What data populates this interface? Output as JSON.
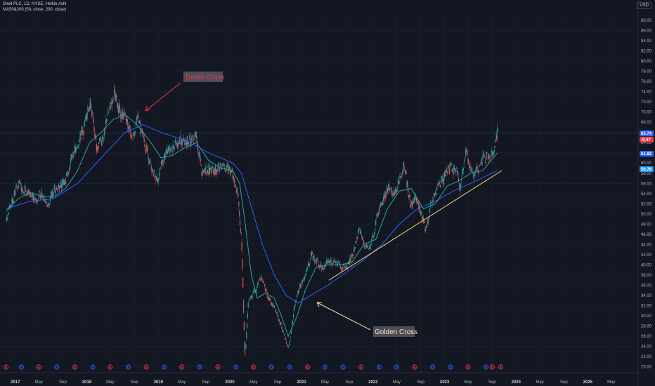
{
  "header": {
    "line1": "Shell PLC, 1D, NYSE, Heikin Ashi",
    "line2": "MA50&200 (50, close, 200, close)"
  },
  "currency_label": "USD",
  "colors": {
    "background": "#131722",
    "candle_up": "#26a69a",
    "candle_down": "#ef5350",
    "candle_blend": "#a35ca8",
    "ma50": "#26a6a6",
    "ma200": "#2962ff",
    "death_cross_text": "#f23645",
    "golden_cross_text": "#ffe0b2",
    "trend_line": "#ffcc80",
    "death_arrow": "#f23645",
    "golden_arrow": "#ffe0b2",
    "price_line": "#2962ff"
  },
  "chart_data": {
    "type": "line",
    "xlabel": "",
    "ylabel": "",
    "x_axis_ticks": [
      {
        "label": "2017",
        "date": "2017-01-01",
        "year": true
      },
      {
        "label": "May",
        "date": "2017-05-01",
        "year": false
      },
      {
        "label": "Sep",
        "date": "2017-09-01",
        "year": false
      },
      {
        "label": "2018",
        "date": "2018-01-01",
        "year": true
      },
      {
        "label": "May",
        "date": "2018-05-01",
        "year": false
      },
      {
        "label": "Sep",
        "date": "2018-09-01",
        "year": false
      },
      {
        "label": "2019",
        "date": "2019-01-01",
        "year": true
      },
      {
        "label": "May",
        "date": "2019-05-01",
        "year": false
      },
      {
        "label": "Sep",
        "date": "2019-09-01",
        "year": false
      },
      {
        "label": "2020",
        "date": "2020-01-01",
        "year": true
      },
      {
        "label": "May",
        "date": "2020-05-01",
        "year": false
      },
      {
        "label": "Sep",
        "date": "2020-09-01",
        "year": false
      },
      {
        "label": "2021",
        "date": "2021-01-01",
        "year": true
      },
      {
        "label": "May",
        "date": "2021-05-01",
        "year": false
      },
      {
        "label": "Sep",
        "date": "2021-09-01",
        "year": false
      },
      {
        "label": "2022",
        "date": "2022-01-01",
        "year": true
      },
      {
        "label": "May",
        "date": "2022-05-01",
        "year": false
      },
      {
        "label": "Sep",
        "date": "2022-09-01",
        "year": false
      },
      {
        "label": "2023",
        "date": "2023-01-01",
        "year": true
      },
      {
        "label": "May",
        "date": "2023-05-01",
        "year": false
      },
      {
        "label": "Sep",
        "date": "2023-09-01",
        "year": false
      },
      {
        "label": "2024",
        "date": "2024-01-01",
        "year": true
      },
      {
        "label": "May",
        "date": "2024-05-01",
        "year": false
      },
      {
        "label": "Sep",
        "date": "2024-09-01",
        "year": false
      },
      {
        "label": "2025",
        "date": "2025-01-01",
        "year": true
      },
      {
        "label": "May",
        "date": "2025-05-01",
        "year": false
      }
    ],
    "y_axis_ticks": [
      20,
      22,
      24,
      26,
      28,
      30,
      32,
      34,
      36,
      38,
      40,
      42,
      44,
      46,
      48,
      50,
      52,
      54,
      56,
      58,
      60,
      62,
      64,
      66,
      68,
      70,
      72,
      74,
      76,
      78,
      80,
      82,
      84,
      86,
      88
    ],
    "y_tick_labels": [
      "20.00",
      "22.00",
      "24.00",
      "26.00",
      "28.00",
      "30.00",
      "32.00",
      "34.00",
      "36.00",
      "38.00",
      "40.00",
      "42.00",
      "44.00",
      "46.00",
      "48.00",
      "50.00",
      "52.00",
      "54.00",
      "56.00",
      "58.00",
      "60.00",
      "62.00",
      "64.00",
      "66.00",
      "68.00",
      "70.00",
      "72.00",
      "74.00",
      "76.00",
      "78.00",
      "80.00",
      "82.00",
      "84.00",
      "86.00",
      "88.00"
    ],
    "ylim": [
      19,
      89.5
    ],
    "xlim": [
      "2016-10-15",
      "2025-09-15"
    ],
    "price_series": {
      "name": "Shell PLC",
      "points": [
        [
          "2016-11-15",
          48.8
        ],
        [
          "2016-12-15",
          52.4
        ],
        [
          "2017-01-15",
          55.8
        ],
        [
          "2017-02-15",
          55.0
        ],
        [
          "2017-03-15",
          53.5
        ],
        [
          "2017-04-15",
          53.2
        ],
        [
          "2017-05-15",
          53.8
        ],
        [
          "2017-06-15",
          51.5
        ],
        [
          "2017-07-15",
          54.8
        ],
        [
          "2017-08-15",
          55.5
        ],
        [
          "2017-09-15",
          56.8
        ],
        [
          "2017-10-15",
          61.0
        ],
        [
          "2017-11-15",
          64.0
        ],
        [
          "2017-12-15",
          66.8
        ],
        [
          "2018-01-20",
          72.0
        ],
        [
          "2018-02-20",
          63.0
        ],
        [
          "2018-03-20",
          64.5
        ],
        [
          "2018-04-20",
          70.0
        ],
        [
          "2018-05-20",
          73.5
        ],
        [
          "2018-06-20",
          70.0
        ],
        [
          "2018-07-20",
          69.5
        ],
        [
          "2018-08-20",
          65.0
        ],
        [
          "2018-09-20",
          68.5
        ],
        [
          "2018-10-20",
          64.0
        ],
        [
          "2018-11-20",
          60.0
        ],
        [
          "2018-12-24",
          56.5
        ],
        [
          "2019-01-20",
          60.5
        ],
        [
          "2019-02-20",
          62.5
        ],
        [
          "2019-03-20",
          63.0
        ],
        [
          "2019-04-20",
          64.5
        ],
        [
          "2019-05-20",
          64.5
        ],
        [
          "2019-06-20",
          64.0
        ],
        [
          "2019-07-10",
          66.0
        ],
        [
          "2019-08-15",
          57.5
        ],
        [
          "2019-09-15",
          59.0
        ],
        [
          "2019-10-15",
          58.5
        ],
        [
          "2019-11-15",
          59.5
        ],
        [
          "2019-12-15",
          59.0
        ],
        [
          "2020-01-15",
          58.0
        ],
        [
          "2020-02-10",
          54.0
        ],
        [
          "2020-03-01",
          45.0
        ],
        [
          "2020-03-18",
          21.5
        ],
        [
          "2020-04-05",
          33.0
        ],
        [
          "2020-05-01",
          34.5
        ],
        [
          "2020-06-10",
          37.5
        ],
        [
          "2020-07-15",
          33.5
        ],
        [
          "2020-08-15",
          31.5
        ],
        [
          "2020-09-15",
          28.5
        ],
        [
          "2020-10-28",
          23.5
        ],
        [
          "2020-11-25",
          31.5
        ],
        [
          "2020-12-20",
          35.5
        ],
        [
          "2021-01-20",
          38.0
        ],
        [
          "2021-02-20",
          42.0
        ],
        [
          "2021-03-15",
          41.0
        ],
        [
          "2021-04-15",
          39.5
        ],
        [
          "2021-05-15",
          40.5
        ],
        [
          "2021-06-20",
          41.0
        ],
        [
          "2021-07-20",
          39.5
        ],
        [
          "2021-08-20",
          39.5
        ],
        [
          "2021-09-20",
          42.0
        ],
        [
          "2021-10-20",
          47.0
        ],
        [
          "2021-11-20",
          44.0
        ],
        [
          "2021-12-20",
          43.5
        ],
        [
          "2022-01-25",
          50.0
        ],
        [
          "2022-02-25",
          53.0
        ],
        [
          "2022-03-25",
          55.5
        ],
        [
          "2022-04-25",
          54.0
        ],
        [
          "2022-06-08",
          60.0
        ],
        [
          "2022-07-10",
          52.0
        ],
        [
          "2022-08-15",
          53.0
        ],
        [
          "2022-09-28",
          46.5
        ],
        [
          "2022-10-28",
          52.5
        ],
        [
          "2022-11-28",
          55.5
        ],
        [
          "2022-12-28",
          57.0
        ],
        [
          "2023-01-28",
          59.0
        ],
        [
          "2023-02-28",
          58.5
        ],
        [
          "2023-03-20",
          55.0
        ],
        [
          "2023-04-20",
          62.0
        ],
        [
          "2023-05-20",
          58.0
        ],
        [
          "2023-06-20",
          58.5
        ],
        [
          "2023-07-20",
          61.0
        ],
        [
          "2023-08-20",
          61.5
        ],
        [
          "2023-09-10",
          62.5
        ],
        [
          "2023-09-28",
          66.0
        ]
      ]
    },
    "ma50": {
      "name": "MA50",
      "points": [
        [
          "2016-11-15",
          50.5
        ],
        [
          "2017-01-15",
          53.0
        ],
        [
          "2017-03-15",
          54.2
        ],
        [
          "2017-05-15",
          53.5
        ],
        [
          "2017-07-15",
          53.3
        ],
        [
          "2017-09-15",
          55.0
        ],
        [
          "2017-11-15",
          58.5
        ],
        [
          "2018-01-15",
          64.0
        ],
        [
          "2018-03-15",
          66.0
        ],
        [
          "2018-05-15",
          68.5
        ],
        [
          "2018-07-15",
          69.5
        ],
        [
          "2018-09-15",
          67.5
        ],
        [
          "2018-11-15",
          64.5
        ],
        [
          "2019-01-15",
          61.0
        ],
        [
          "2019-03-15",
          61.5
        ],
        [
          "2019-05-15",
          63.0
        ],
        [
          "2019-07-15",
          64.0
        ],
        [
          "2019-09-15",
          60.5
        ],
        [
          "2019-11-15",
          59.0
        ],
        [
          "2020-01-15",
          58.5
        ],
        [
          "2020-02-20",
          56.0
        ],
        [
          "2020-03-20",
          48.0
        ],
        [
          "2020-04-20",
          38.0
        ],
        [
          "2020-05-20",
          33.5
        ],
        [
          "2020-07-01",
          34.5
        ],
        [
          "2020-08-15",
          33.5
        ],
        [
          "2020-09-20",
          30.0
        ],
        [
          "2020-10-25",
          26.0
        ],
        [
          "2020-12-10",
          30.0
        ],
        [
          "2021-01-20",
          35.0
        ],
        [
          "2021-03-15",
          39.5
        ],
        [
          "2021-05-15",
          40.0
        ],
        [
          "2021-07-15",
          40.0
        ],
        [
          "2021-09-15",
          40.5
        ],
        [
          "2021-11-15",
          44.0
        ],
        [
          "2022-01-15",
          45.0
        ],
        [
          "2022-03-15",
          51.0
        ],
        [
          "2022-05-15",
          54.5
        ],
        [
          "2022-07-15",
          55.0
        ],
        [
          "2022-09-15",
          51.0
        ],
        [
          "2022-11-15",
          52.0
        ],
        [
          "2023-01-15",
          55.5
        ],
        [
          "2023-03-15",
          56.5
        ],
        [
          "2023-05-15",
          58.0
        ],
        [
          "2023-07-15",
          58.5
        ],
        [
          "2023-09-28",
          62.0
        ]
      ]
    },
    "ma200": {
      "name": "MA200",
      "points": [
        [
          "2016-11-15",
          51.0
        ],
        [
          "2017-03-15",
          52.5
        ],
        [
          "2017-07-15",
          53.0
        ],
        [
          "2017-11-15",
          56.0
        ],
        [
          "2018-03-15",
          61.0
        ],
        [
          "2018-07-15",
          66.0
        ],
        [
          "2018-10-15",
          67.5
        ],
        [
          "2019-01-15",
          66.0
        ],
        [
          "2019-05-15",
          64.5
        ],
        [
          "2019-09-15",
          62.0
        ],
        [
          "2020-01-15",
          60.0
        ],
        [
          "2020-03-01",
          58.0
        ],
        [
          "2020-04-15",
          52.0
        ],
        [
          "2020-06-15",
          44.0
        ],
        [
          "2020-08-15",
          38.0
        ],
        [
          "2020-10-15",
          34.0
        ],
        [
          "2020-12-15",
          32.5
        ],
        [
          "2021-02-15",
          34.0
        ],
        [
          "2021-05-15",
          36.0
        ],
        [
          "2021-08-15",
          38.5
        ],
        [
          "2021-11-15",
          41.0
        ],
        [
          "2022-02-15",
          44.0
        ],
        [
          "2022-05-15",
          48.0
        ],
        [
          "2022-08-15",
          51.0
        ],
        [
          "2022-11-15",
          52.5
        ],
        [
          "2023-02-15",
          54.5
        ],
        [
          "2023-05-15",
          56.0
        ],
        [
          "2023-09-28",
          58.5
        ]
      ]
    },
    "last_price_line": 65.8,
    "price_badges": [
      {
        "label": "65.74",
        "value": 65.8,
        "color": "#2962ff"
      },
      {
        "label": "-0.47",
        "value": 64.6,
        "color": "#f23645"
      },
      {
        "label": "61.82",
        "value": 61.8,
        "color": "#2962ff"
      },
      {
        "label": "58.78",
        "value": 58.8,
        "color": "#2196f3"
      }
    ],
    "annotations": [
      {
        "label": "Death Cross",
        "type": "death"
      },
      {
        "label": "Golden Cross",
        "type": "golden"
      }
    ],
    "trend_line": {
      "from": [
        "2021-05-20",
        37.0
      ],
      "to": [
        "2023-10-20",
        58.5
      ]
    },
    "event_markers": [
      {
        "date": "2016-11-15",
        "kind": "E"
      },
      {
        "date": "2017-02-01",
        "kind": "D"
      },
      {
        "date": "2017-05-01",
        "kind": "E"
      },
      {
        "date": "2017-08-01",
        "kind": "D"
      },
      {
        "date": "2017-11-01",
        "kind": "E"
      },
      {
        "date": "2018-02-01",
        "kind": "D"
      },
      {
        "date": "2018-05-01",
        "kind": "E"
      },
      {
        "date": "2018-08-01",
        "kind": "D"
      },
      {
        "date": "2018-11-01",
        "kind": "E"
      },
      {
        "date": "2019-02-01",
        "kind": "D"
      },
      {
        "date": "2019-05-01",
        "kind": "E"
      },
      {
        "date": "2019-08-01",
        "kind": "D"
      },
      {
        "date": "2019-11-01",
        "kind": "E"
      },
      {
        "date": "2020-02-01",
        "kind": "D"
      },
      {
        "date": "2020-05-01",
        "kind": "E"
      },
      {
        "date": "2020-08-01",
        "kind": "D"
      },
      {
        "date": "2020-11-01",
        "kind": "D"
      },
      {
        "date": "2021-02-01",
        "kind": "E"
      },
      {
        "date": "2021-05-01",
        "kind": "D"
      },
      {
        "date": "2021-08-01",
        "kind": "D"
      },
      {
        "date": "2021-11-01",
        "kind": "E"
      },
      {
        "date": "2022-02-01",
        "kind": "D"
      },
      {
        "date": "2022-05-01",
        "kind": "D"
      },
      {
        "date": "2022-08-01",
        "kind": "E"
      },
      {
        "date": "2022-11-01",
        "kind": "D"
      },
      {
        "date": "2023-02-01",
        "kind": "D"
      },
      {
        "date": "2023-05-01",
        "kind": "E"
      },
      {
        "date": "2023-08-01",
        "kind": "D"
      },
      {
        "date": "2023-09-01",
        "kind": "E"
      },
      {
        "date": "2023-10-15",
        "kind": "E"
      }
    ]
  }
}
